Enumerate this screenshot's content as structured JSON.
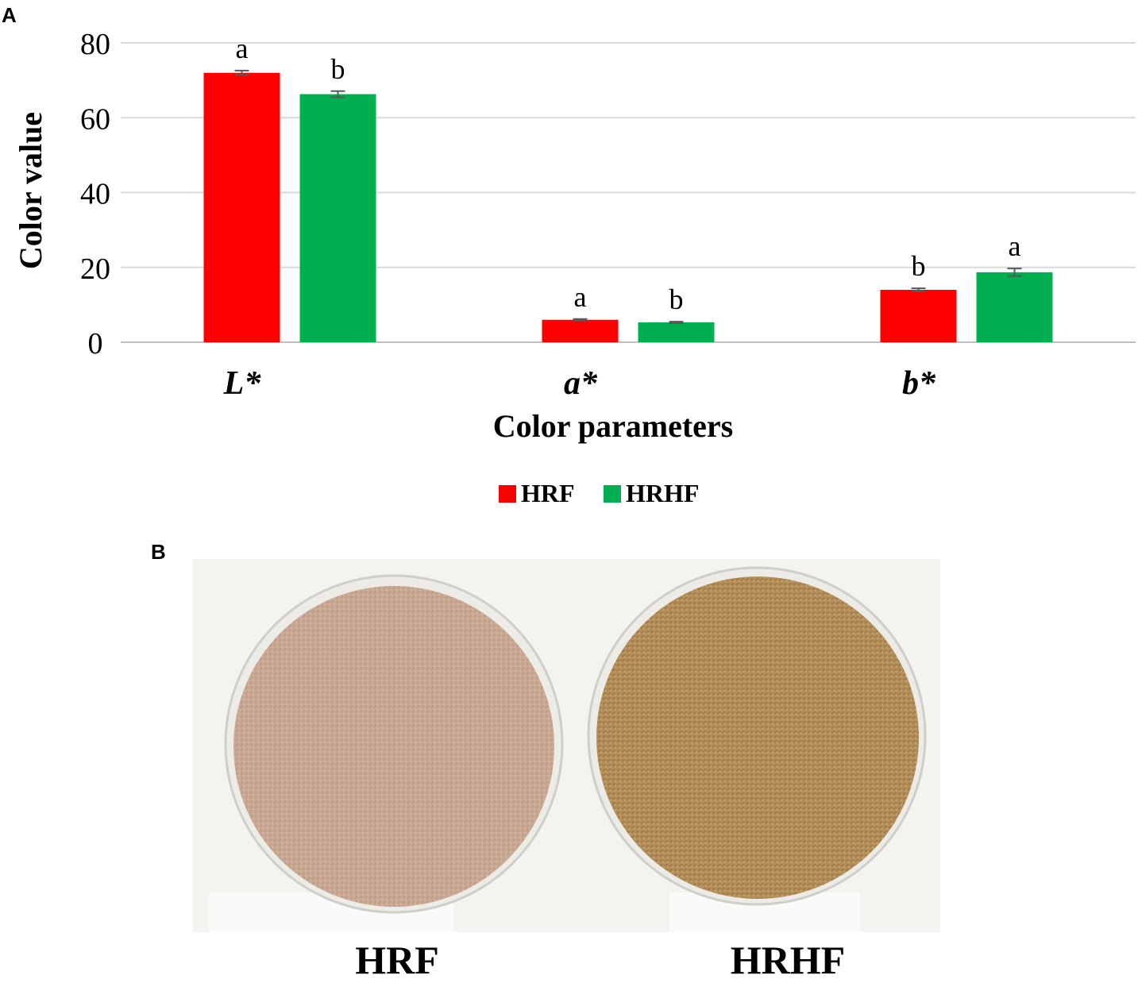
{
  "panel_labels": {
    "a": "A",
    "b": "B"
  },
  "chart_data": {
    "type": "bar",
    "categories": [
      "L*",
      "a*",
      "b*"
    ],
    "series": [
      {
        "name": "HRF",
        "color": "#ff0000",
        "values": [
          72.0,
          6.0,
          14.0
        ],
        "errors": [
          0.6,
          0.2,
          0.4
        ],
        "letters": [
          "a",
          "a",
          "b"
        ]
      },
      {
        "name": "HRHF",
        "color": "#00b050",
        "values": [
          66.3,
          5.3,
          18.7
        ],
        "errors": [
          0.8,
          0.2,
          1.0
        ],
        "letters": [
          "b",
          "b",
          "a"
        ]
      }
    ],
    "ylabel": "Color value",
    "xlabel": "Color parameters",
    "ylim": [
      0,
      80
    ],
    "yticks": [
      0,
      20,
      40,
      60,
      80
    ],
    "grid": true,
    "legend_position": "bottom"
  },
  "photo": {
    "dishes": [
      {
        "label": "HRF",
        "color": "#c9a892"
      },
      {
        "label": "HRHF",
        "color": "#b8915c"
      }
    ]
  }
}
